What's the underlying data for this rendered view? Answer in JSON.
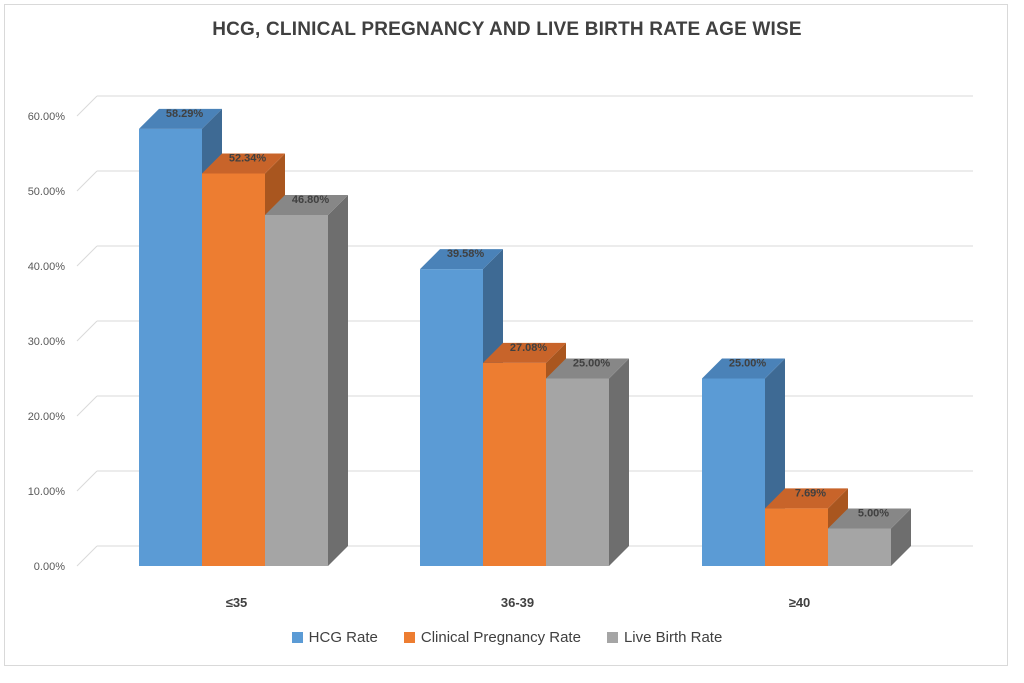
{
  "chart_data": {
    "type": "bar",
    "title": "HCG, CLINICAL PREGNANCY AND LIVE BIRTH RATE AGE WISE",
    "categories": [
      "≤35",
      "36-39",
      "≥40"
    ],
    "series": [
      {
        "name": "HCG Rate",
        "values": [
          58.29,
          39.58,
          25.0
        ],
        "labels": [
          "58.29%",
          "39.58%",
          "25.00%"
        ],
        "color": "#5b9bd5",
        "side": "#3e6a94",
        "top": "#4a82b8"
      },
      {
        "name": "Clinical Pregnancy Rate",
        "values": [
          52.34,
          27.08,
          7.69
        ],
        "labels": [
          "52.34%",
          "27.08%",
          "7.69%"
        ],
        "color": "#ed7d31",
        "side": "#a9561f",
        "top": "#c8642a"
      },
      {
        "name": "Live Birth Rate",
        "values": [
          46.8,
          25.0,
          5.0
        ],
        "labels": [
          "46.80%",
          "25.00%",
          "5.00%"
        ],
        "color": "#a5a5a5",
        "side": "#6e6e6e",
        "top": "#878787"
      }
    ],
    "yticks": [
      "0.00%",
      "10.00%",
      "20.00%",
      "30.00%",
      "40.00%",
      "50.00%",
      "60.00%"
    ],
    "ylim": [
      0,
      60
    ],
    "xlabel": "",
    "ylabel": "",
    "grid": true,
    "legend": "bottom"
  }
}
